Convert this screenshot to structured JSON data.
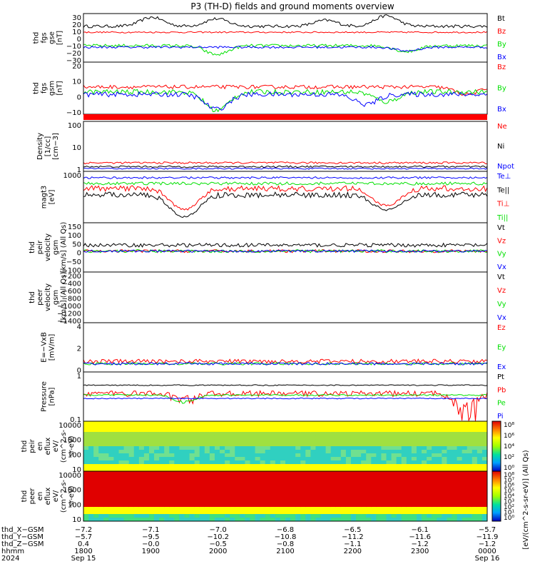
{
  "title": "P3 (TH-D) fields and ground moments overview",
  "colors": {
    "black": "#000000",
    "red": "#ff0000",
    "green": "#00e000",
    "blue": "#0000ff",
    "spec_high": "#e00000",
    "spec_mid": "#ffff00",
    "spec_low": "#30d0c0",
    "spec_min": "#0000c0"
  },
  "chart_data": [
    {
      "type": "line",
      "id": "p1",
      "ylabel": [
        "thd",
        "fgs",
        "gse",
        "[nT]"
      ],
      "ylim": [
        -30,
        35
      ],
      "yticks": [
        "30",
        "20",
        "10",
        "0",
        "−10",
        "−20",
        "−30"
      ],
      "series": [
        {
          "name": "Bt",
          "color": "black",
          "base": 18,
          "noise": 4,
          "events": [
            [
              0.17,
              12
            ],
            [
              0.33,
              10
            ],
            [
              0.6,
              8
            ],
            [
              0.75,
              14
            ]
          ]
        },
        {
          "name": "Bz",
          "color": "red",
          "base": 10,
          "noise": 2,
          "events": []
        },
        {
          "name": "By",
          "color": "green",
          "base": -8,
          "noise": 4,
          "events": [
            [
              0.33,
              -12
            ],
            [
              0.8,
              -8
            ]
          ]
        },
        {
          "name": "Bx",
          "color": "blue",
          "base": -10,
          "noise": 3,
          "events": [
            [
              0.8,
              -5
            ]
          ]
        }
      ]
    },
    {
      "type": "line",
      "id": "p2",
      "ylabel": [
        "thd",
        "fgs",
        "gsm",
        "[nT]"
      ],
      "ylim": [
        -20,
        22
      ],
      "yticks": [
        "20",
        "10",
        "0",
        "−10"
      ],
      "series": [
        {
          "name": "Bz",
          "color": "red",
          "base": 2,
          "noise": 3,
          "events": [
            [
              0.95,
              -6
            ]
          ]
        },
        {
          "name": "By",
          "color": "green",
          "base": -2,
          "noise": 4,
          "events": [
            [
              0.33,
              -15
            ],
            [
              0.75,
              -8
            ]
          ]
        },
        {
          "name": "Bx",
          "color": "blue",
          "base": -4,
          "noise": 4,
          "events": [
            [
              0.33,
              -12
            ],
            [
              0.7,
              -8
            ]
          ]
        }
      ]
    },
    {
      "type": "line",
      "id": "p3",
      "log": true,
      "ylabel": [
        "Density",
        "[1/cc]",
        "[cm−3]"
      ],
      "ylim": [
        0.1,
        150
      ],
      "yticks": [
        "100",
        "10",
        "1"
      ],
      "series": [
        {
          "name": "Ne",
          "color": "red",
          "base": 0.35,
          "noise": 0.1,
          "events": []
        },
        {
          "name": "Ni",
          "color": "black",
          "base": 0.2,
          "noise": 0.05,
          "events": []
        },
        {
          "name": "Npot",
          "color": "blue",
          "base": 0.15,
          "noise": 0.03,
          "events": []
        }
      ]
    },
    {
      "type": "line",
      "id": "p4",
      "log": true,
      "reverse": true,
      "ylabel": [
        "magt3",
        "[eV]"
      ],
      "ylim": [
        200,
        3000
      ],
      "yticks": [
        "1000"
      ],
      "series": [
        {
          "name": "Te⊥",
          "color": "blue",
          "base": 280,
          "noise": 30,
          "events": []
        },
        {
          "name": "Te||",
          "color": "black",
          "base": 700,
          "noise": 200,
          "events": [
            [
              0.25,
              1500
            ],
            [
              0.75,
              800
            ]
          ]
        },
        {
          "name": "Ti⊥",
          "color": "red",
          "base": 500,
          "noise": 150,
          "events": [
            [
              0.25,
              1000
            ],
            [
              0.75,
              700
            ]
          ]
        },
        {
          "name": "Ti||",
          "color": "green",
          "base": 380,
          "noise": 60,
          "events": []
        }
      ]
    },
    {
      "type": "line",
      "id": "p5",
      "ylabel": [
        "thd",
        "peir",
        "velocity",
        "gsm",
        "[km/s] (All Qs)"
      ],
      "ylim": [
        -140,
        190
      ],
      "yticks": [
        "150",
        "100",
        "50",
        "0",
        "−50",
        "−100"
      ],
      "series": [
        {
          "name": "Vt",
          "color": "black",
          "base": 40,
          "noise": 25,
          "events": []
        },
        {
          "name": "Vz",
          "color": "red",
          "base": 0,
          "noise": 20,
          "events": []
        },
        {
          "name": "Vy",
          "color": "green",
          "base": 0,
          "noise": 20,
          "events": []
        },
        {
          "name": "Vx",
          "color": "blue",
          "base": 0,
          "noise": 15,
          "events": []
        }
      ]
    },
    {
      "type": "line",
      "id": "p6",
      "ylabel": [
        "thd",
        "peer",
        "velocity",
        "gsm",
        "[km/s] (All Qs)"
      ],
      "ylim": [
        -1500,
        0
      ],
      "yticks": [
        "−200",
        "−400",
        "−600",
        "−800",
        "−1000",
        "−1200",
        "−1400"
      ],
      "series": [
        {
          "name": "Vt",
          "color": "black",
          "base": 0,
          "noise": 0,
          "events": []
        },
        {
          "name": "Vz",
          "color": "red",
          "base": 0,
          "noise": 0,
          "events": []
        },
        {
          "name": "Vy",
          "color": "green",
          "base": 0,
          "noise": 0,
          "events": []
        },
        {
          "name": "Vx",
          "color": "blue",
          "base": 0,
          "noise": 0,
          "events": []
        }
      ]
    },
    {
      "type": "line",
      "id": "p7",
      "ylabel": [
        "E=−VxB",
        "[mV/m]"
      ],
      "ylim": [
        -1,
        5
      ],
      "yticks": [
        "4",
        "2",
        "0"
      ],
      "series": [
        {
          "name": "Ez",
          "color": "red",
          "base": 0.3,
          "noise": 0.5,
          "events": []
        },
        {
          "name": "Ey",
          "color": "green",
          "base": 0,
          "noise": 0.3,
          "events": []
        },
        {
          "name": "Ex",
          "color": "blue",
          "base": 0,
          "noise": 0.3,
          "events": []
        }
      ]
    },
    {
      "type": "line",
      "id": "p8",
      "log": true,
      "ylabel": [
        "Pressure",
        "[nPa]"
      ],
      "ylim": [
        0.005,
        2
      ],
      "yticks": [
        "1",
        "0.1"
      ],
      "series": [
        {
          "name": "Pt",
          "color": "black",
          "base": 0.4,
          "noise": 0.05,
          "events": []
        },
        {
          "name": "Pb",
          "color": "red",
          "base": 0.15,
          "noise": 0.1,
          "events": [
            [
              0.25,
              -0.08
            ],
            [
              0.95,
              -0.14
            ]
          ]
        },
        {
          "name": "Pe",
          "color": "green",
          "base": 0.12,
          "noise": 0.02,
          "events": [
            [
              0.25,
              -0.07
            ]
          ]
        },
        {
          "name": "Pi",
          "color": "blue",
          "base": 0.08,
          "noise": 0.01,
          "events": []
        }
      ]
    },
    {
      "type": "heatmap",
      "id": "p9",
      "ylabel": [
        "thd",
        "peir",
        "en",
        "eflux",
        "eV/",
        "(cm^2-s-",
        "sr-eV)"
      ],
      "yticks": [
        "10000",
        "1000",
        "100",
        "10"
      ],
      "colorbar_ticks": [
        "10⁸",
        "10⁶",
        "10⁴",
        "10²",
        "10⁰"
      ],
      "colorbar_label": "[eV/(cm^2-s-sr-eV)] (All Qs)"
    },
    {
      "type": "heatmap",
      "id": "p10",
      "ylabel": [
        "thd",
        "peer",
        "en",
        "eflux",
        "eV/",
        "(cm^2-s-",
        "sr-eV)"
      ],
      "yticks": [
        "10000",
        "1000",
        "100",
        "10"
      ],
      "colorbar_ticks": [
        "10⁸",
        "10⁷",
        "10⁶",
        "10⁵",
        "10⁴",
        "10³",
        "10²",
        "10¹",
        "10⁰"
      ]
    }
  ],
  "xaxis": {
    "rows": [
      {
        "label": "thd_X−GSM",
        "values": [
          "−7.2",
          "−7.1",
          "−7.0",
          "−6.8",
          "−6.5",
          "−6.1",
          "−5.7"
        ]
      },
      {
        "label": "thd_Y−GSM",
        "values": [
          "−5.7",
          "−9.5",
          "−10.2",
          "−10.8",
          "−11.2",
          "−11.6",
          "−11.9"
        ]
      },
      {
        "label": "thd_Z−GSM",
        "values": [
          "0.4",
          "−0.0",
          "−0.5",
          "−0.8",
          "−1.1",
          "−1.2",
          "−1.2"
        ]
      },
      {
        "label": "hhmm",
        "values": [
          "1800",
          "1900",
          "2000",
          "2100",
          "2200",
          "2300",
          "0000"
        ]
      }
    ],
    "year": "2024",
    "date_start": "Sep 15",
    "date_end": "Sep 16"
  }
}
